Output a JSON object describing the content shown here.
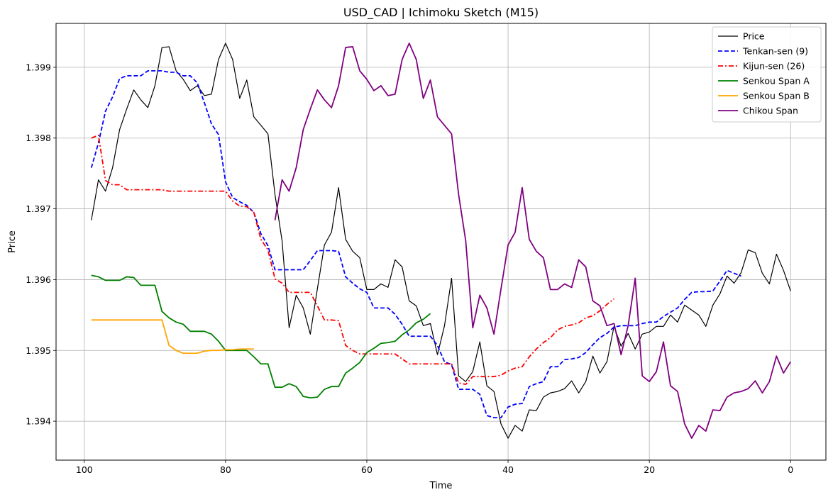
{
  "chart_data": {
    "type": "line",
    "title": "USD_CAD | Ichimoku Sketch (M15)",
    "xlabel": "Time",
    "ylabel": "Price",
    "xlim": [
      104,
      -5
    ],
    "ylim": [
      1.39345,
      1.39962
    ],
    "x_ticks": [
      100,
      80,
      60,
      40,
      20,
      0
    ],
    "x_tick_labels": [
      "100",
      "80",
      "60",
      "40",
      "20",
      "0"
    ],
    "y_ticks": [
      1.394,
      1.395,
      1.396,
      1.397,
      1.398,
      1.399
    ],
    "y_tick_labels": [
      "1.394",
      "1.395",
      "1.396",
      "1.397",
      "1.398",
      "1.399"
    ],
    "grid": true,
    "legend_position": "top-right",
    "series": [
      {
        "name": "Price",
        "color": "#000000",
        "dash": "solid",
        "width": 1.2,
        "x_start": 99,
        "values": [
          1.39684,
          1.39741,
          1.39725,
          1.39758,
          1.39812,
          1.39841,
          1.39868,
          1.39854,
          1.39843,
          1.39874,
          1.39928,
          1.39929,
          1.39895,
          1.39883,
          1.39867,
          1.39874,
          1.3986,
          1.39862,
          1.39911,
          1.39934,
          1.39911,
          1.39856,
          1.39882,
          1.3983,
          1.39818,
          1.39806,
          1.3972,
          1.39655,
          1.39532,
          1.39578,
          1.3956,
          1.39523,
          1.39587,
          1.39649,
          1.39667,
          1.3973,
          1.39657,
          1.3964,
          1.39631,
          1.39586,
          1.39586,
          1.39594,
          1.39589,
          1.39628,
          1.39618,
          1.3957,
          1.39563,
          1.39535,
          1.39538,
          1.39494,
          1.39535,
          1.39602,
          1.39464,
          1.39456,
          1.3947,
          1.39512,
          1.3945,
          1.39442,
          1.39396,
          1.39376,
          1.39394,
          1.39386,
          1.39416,
          1.39415,
          1.39434,
          1.3944,
          1.39442,
          1.39446,
          1.39457,
          1.3944,
          1.39456,
          1.39492,
          1.39468,
          1.39484,
          1.39534,
          1.39506,
          1.39524,
          1.39502,
          1.39523,
          1.39526,
          1.39534,
          1.39534,
          1.3955,
          1.3954,
          1.39564,
          1.39557,
          1.3955,
          1.39534,
          1.39564,
          1.3958,
          1.39605,
          1.39595,
          1.3961,
          1.39642,
          1.39638,
          1.39609,
          1.39594,
          1.39636,
          1.39613,
          1.39584
        ]
      },
      {
        "name": "Tenkan-sen (9)",
        "color": "#0000ff",
        "dash": "dashed",
        "width": 1.8,
        "x_start": 99,
        "values": [
          1.39758,
          1.39793,
          1.39838,
          1.39858,
          1.39884,
          1.39888,
          1.39888,
          1.39888,
          1.39895,
          1.39895,
          1.39895,
          1.39893,
          1.39893,
          1.39888,
          1.39888,
          1.39878,
          1.3985,
          1.3982,
          1.39805,
          1.39738,
          1.39716,
          1.3971,
          1.39705,
          1.39695,
          1.39665,
          1.39648,
          1.39614,
          1.39614,
          1.39614,
          1.39614,
          1.39614,
          1.39627,
          1.39641,
          1.39641,
          1.39641,
          1.3964,
          1.39604,
          1.39595,
          1.39587,
          1.39582,
          1.3956,
          1.3956,
          1.3956,
          1.39551,
          1.39537,
          1.3952,
          1.3952,
          1.3952,
          1.3952,
          1.39507,
          1.39484,
          1.3948,
          1.39445,
          1.39445,
          1.39445,
          1.39438,
          1.39408,
          1.39405,
          1.39405,
          1.3942,
          1.39424,
          1.39425,
          1.39449,
          1.39453,
          1.39456,
          1.39477,
          1.39477,
          1.39487,
          1.39488,
          1.3949,
          1.39497,
          1.39508,
          1.39518,
          1.39524,
          1.39533,
          1.39535,
          1.39535,
          1.39535,
          1.39538,
          1.3954,
          1.3954,
          1.39548,
          1.39554,
          1.3956,
          1.39572,
          1.39582,
          1.39583,
          1.39583,
          1.39584,
          1.39598,
          1.39613,
          1.39609,
          1.39605
        ]
      },
      {
        "name": "Kijun-sen (26)",
        "color": "#ff0000",
        "dash": "dashdot",
        "width": 1.8,
        "x_start": 99,
        "values": [
          1.398,
          1.39804,
          1.3974,
          1.39734,
          1.39734,
          1.39727,
          1.39727,
          1.39727,
          1.39727,
          1.39727,
          1.39727,
          1.39725,
          1.39725,
          1.39725,
          1.39725,
          1.39725,
          1.39725,
          1.39725,
          1.39725,
          1.39725,
          1.39711,
          1.39704,
          1.39703,
          1.39695,
          1.39657,
          1.39642,
          1.39601,
          1.39595,
          1.39582,
          1.39582,
          1.39582,
          1.39582,
          1.39563,
          1.39543,
          1.39543,
          1.39542,
          1.39507,
          1.395,
          1.39495,
          1.39495,
          1.39495,
          1.39495,
          1.39495,
          1.39495,
          1.39488,
          1.39481,
          1.39481,
          1.39481,
          1.39481,
          1.39481,
          1.39481,
          1.39481,
          1.39454,
          1.39452,
          1.39463,
          1.39463,
          1.39463,
          1.39463,
          1.39465,
          1.39471,
          1.39475,
          1.39477,
          1.39491,
          1.39502,
          1.39511,
          1.39518,
          1.39529,
          1.39534,
          1.39536,
          1.39539,
          1.39546,
          1.39549,
          1.39556,
          1.39565,
          1.39573
        ]
      },
      {
        "name": "Senkou Span A",
        "color": "#008000",
        "dash": "solid",
        "width": 1.8,
        "x_start": 99,
        "values": [
          1.39606,
          1.39604,
          1.39599,
          1.39599,
          1.39599,
          1.39604,
          1.39603,
          1.39592,
          1.39592,
          1.39592,
          1.39555,
          1.39546,
          1.3954,
          1.39537,
          1.39527,
          1.39527,
          1.39527,
          1.39523,
          1.39513,
          1.395,
          1.395,
          1.395,
          1.395,
          1.39491,
          1.39481,
          1.39481,
          1.39448,
          1.39448,
          1.39453,
          1.39449,
          1.39435,
          1.39433,
          1.39434,
          1.39445,
          1.39449,
          1.39449,
          1.39468,
          1.39475,
          1.39483,
          1.39497,
          1.39503,
          1.3951,
          1.39511,
          1.39513,
          1.39522,
          1.39529,
          1.39539,
          1.39544,
          1.39552
        ]
      },
      {
        "name": "Senkou Span B",
        "color": "#ffa500",
        "dash": "solid",
        "width": 1.8,
        "x_start": 99,
        "values": [
          1.39543,
          1.39543,
          1.39543,
          1.39543,
          1.39543,
          1.39543,
          1.39543,
          1.39543,
          1.39543,
          1.39543,
          1.39543,
          1.39507,
          1.395,
          1.39496,
          1.39496,
          1.39496,
          1.39499,
          1.395,
          1.395,
          1.39501,
          1.39501,
          1.39502,
          1.39502,
          1.39502
        ]
      },
      {
        "name": "Chikou Span",
        "color": "#800080",
        "dash": "solid",
        "width": 1.8,
        "x_start": 73,
        "values": [
          1.39684,
          1.39741,
          1.39725,
          1.39758,
          1.39812,
          1.39841,
          1.39868,
          1.39854,
          1.39843,
          1.39874,
          1.39928,
          1.39929,
          1.39895,
          1.39883,
          1.39867,
          1.39874,
          1.3986,
          1.39862,
          1.39911,
          1.39934,
          1.39911,
          1.39856,
          1.39882,
          1.3983,
          1.39818,
          1.39806,
          1.3972,
          1.39655,
          1.39532,
          1.39578,
          1.3956,
          1.39523,
          1.39587,
          1.39649,
          1.39667,
          1.3973,
          1.39657,
          1.3964,
          1.39631,
          1.39586,
          1.39586,
          1.39594,
          1.39589,
          1.39628,
          1.39618,
          1.3957,
          1.39563,
          1.39535,
          1.39538,
          1.39494,
          1.39535,
          1.39602,
          1.39464,
          1.39456,
          1.3947,
          1.39512,
          1.3945,
          1.39442,
          1.39396,
          1.39376,
          1.39394,
          1.39386,
          1.39416,
          1.39415,
          1.39434,
          1.3944,
          1.39442,
          1.39446,
          1.39457,
          1.3944,
          1.39456,
          1.39492,
          1.39468,
          1.39484
        ]
      }
    ]
  }
}
